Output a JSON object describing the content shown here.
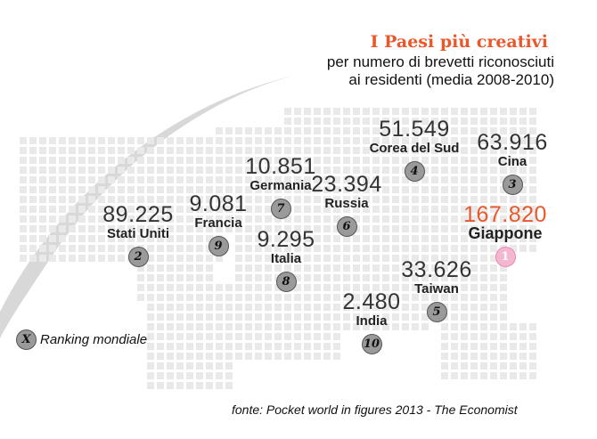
{
  "header": {
    "title": "I Paesi più creativi",
    "subtitle_line1": "per numero di brevetti riconosciuti",
    "subtitle_line2": "ai residenti (media 2008-2010)"
  },
  "countries": [
    {
      "rank": "1",
      "name": "Giappone",
      "value": "167.820"
    },
    {
      "rank": "2",
      "name": "Stati Uniti",
      "value": "89.225"
    },
    {
      "rank": "3",
      "name": "Cina",
      "value": "63.916"
    },
    {
      "rank": "4",
      "name": "Corea del Sud",
      "value": "51.549"
    },
    {
      "rank": "5",
      "name": "Taiwan",
      "value": "33.626"
    },
    {
      "rank": "6",
      "name": "Russia",
      "value": "23.394"
    },
    {
      "rank": "7",
      "name": "Germania",
      "value": "10.851"
    },
    {
      "rank": "8",
      "name": "Italia",
      "value": "9.295"
    },
    {
      "rank": "9",
      "name": "Francia",
      "value": "9.081"
    },
    {
      "rank": "10",
      "name": "India",
      "value": "2.480"
    }
  ],
  "legend": {
    "badge": "X",
    "text": "Ranking mondiale"
  },
  "source": "fonte: Pocket world in figures 2013 - The Economist",
  "colors": {
    "accent": "#e8582c",
    "top_badge": "#f5b6cf",
    "badge": "#9a9a9a",
    "map_dots": "#e9e9e9"
  }
}
